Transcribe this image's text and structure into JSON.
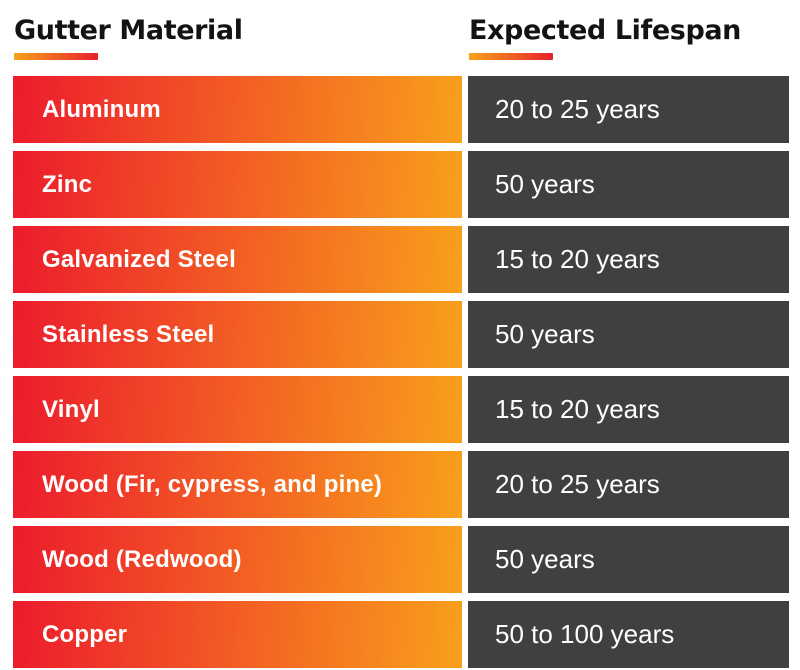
{
  "header": {
    "material_column": "Gutter Material",
    "lifespan_column": "Expected Lifespan"
  },
  "rows": [
    {
      "material": "Aluminum",
      "lifespan": "20 to 25 years"
    },
    {
      "material": "Zinc",
      "lifespan": "50 years"
    },
    {
      "material": "Galvanized Steel",
      "lifespan": "15 to 20 years"
    },
    {
      "material": "Stainless Steel",
      "lifespan": "50 years"
    },
    {
      "material": "Vinyl",
      "lifespan": "15 to 20 years"
    },
    {
      "material": "Wood (Fir, cypress, and pine)",
      "lifespan": "20 to 25 years"
    },
    {
      "material": "Wood (Redwood)",
      "lifespan": "50 years"
    },
    {
      "material": "Copper",
      "lifespan": "50 to 100 years"
    }
  ],
  "colors": {
    "row_gradient_start": "#ec1b2d",
    "row_gradient_end": "#f9a01b",
    "underline_gradient_start": "#f7a21b",
    "underline_gradient_end": "#e6222b",
    "lifespan_box": "#404042",
    "heading_text": "#131313",
    "row_text": "#ffffff"
  },
  "chart_data": {
    "type": "table",
    "columns": [
      "Gutter Material",
      "Expected Lifespan"
    ],
    "rows": [
      [
        "Aluminum",
        "20 to 25 years"
      ],
      [
        "Zinc",
        "50 years"
      ],
      [
        "Galvanized Steel",
        "15 to 20 years"
      ],
      [
        "Stainless Steel",
        "50 years"
      ],
      [
        "Vinyl",
        "15 to 20 years"
      ],
      [
        "Wood (Fir, cypress, and pine)",
        "20 to 25 years"
      ],
      [
        "Wood (Redwood)",
        "50 years"
      ],
      [
        "Copper",
        "50 to 100 years"
      ]
    ]
  }
}
